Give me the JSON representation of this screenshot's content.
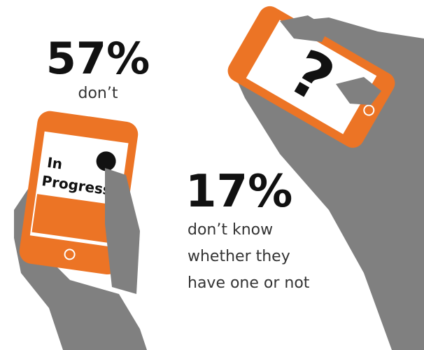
{
  "stats": [
    {
      "figure": "57%",
      "caption": [
        "don’t"
      ]
    },
    {
      "figure": "17%",
      "caption": [
        "don’t know",
        "whether they",
        "have one or not"
      ]
    }
  ],
  "phone_screens": {
    "left": [
      "In",
      "Progress"
    ],
    "right": "?"
  }
}
